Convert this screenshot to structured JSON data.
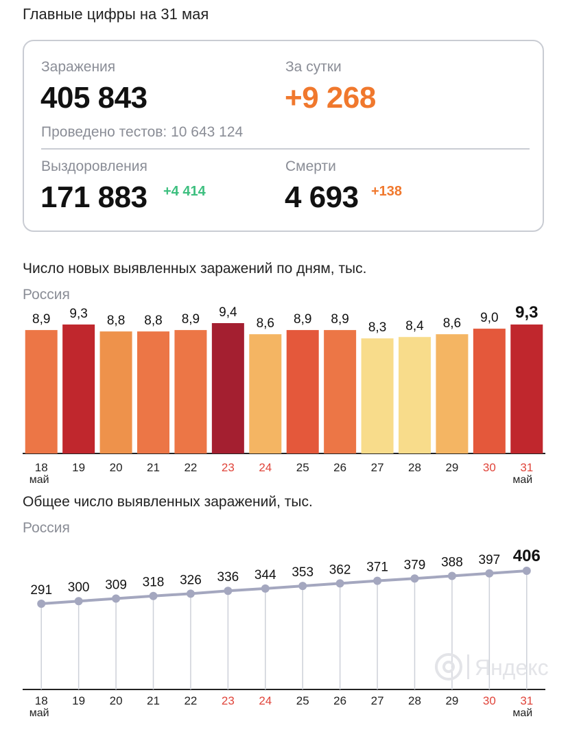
{
  "page_title": "Главные цифры на 31 мая",
  "summary": {
    "infections_label": "Заражения",
    "infections_value": "405 843",
    "daily_label": "За сутки",
    "daily_value": "+9 268",
    "tests_text": "Проведено тестов: 10 643 124",
    "recovered_label": "Выздоровления",
    "recovered_value": "171 883",
    "recovered_delta": "+4 414",
    "deaths_label": "Смерти",
    "deaths_value": "4 693",
    "deaths_delta": "+138"
  },
  "colors": {
    "orange": "#f0782d",
    "green": "#3dbf7f",
    "holiday": "#e0443a",
    "line": "#a4a7bf",
    "bar_scale": [
      "#f8dc8b",
      "#f4b563",
      "#ee924b",
      "#ec7646",
      "#e4583b",
      "#c0272d",
      "#a41f30"
    ]
  },
  "watermark": "Яндекс",
  "chart_data": [
    {
      "type": "bar",
      "title": "Число новых выявленных заражений по дням, тыс.",
      "subtitle": "Россия",
      "categories": [
        "18",
        "19",
        "20",
        "21",
        "22",
        "23",
        "24",
        "25",
        "26",
        "27",
        "28",
        "29",
        "30",
        "31"
      ],
      "month_label": "май",
      "holidays": [
        "23",
        "24",
        "30",
        "31"
      ],
      "values": [
        8.9,
        9.3,
        8.8,
        8.8,
        8.9,
        9.4,
        8.6,
        8.9,
        8.9,
        8.3,
        8.4,
        8.6,
        9.0,
        9.3
      ],
      "labels": [
        "8,9",
        "9,3",
        "8,8",
        "8,8",
        "8,9",
        "9,4",
        "8,6",
        "8,9",
        "8,9",
        "8,3",
        "8,4",
        "8,6",
        "9,0",
        "9,3"
      ],
      "bar_colors": [
        "#ec7646",
        "#c0272d",
        "#ee924b",
        "#ec7646",
        "#ec7646",
        "#a41f30",
        "#f4b563",
        "#e4583b",
        "#ec7646",
        "#f8dc8b",
        "#f8dc8b",
        "#f4b563",
        "#e4583b",
        "#c0272d"
      ],
      "highlight_last": true
    },
    {
      "type": "line",
      "title": "Общее число выявленных заражений, тыс.",
      "subtitle": "Россия",
      "categories": [
        "18",
        "19",
        "20",
        "21",
        "22",
        "23",
        "24",
        "25",
        "26",
        "27",
        "28",
        "29",
        "30",
        "31"
      ],
      "month_label": "май",
      "holidays": [
        "23",
        "24",
        "30",
        "31"
      ],
      "values": [
        291,
        300,
        309,
        318,
        326,
        336,
        344,
        353,
        362,
        371,
        379,
        388,
        397,
        406
      ],
      "labels": [
        "291",
        "300",
        "309",
        "318",
        "326",
        "336",
        "344",
        "353",
        "362",
        "371",
        "379",
        "388",
        "397",
        "406"
      ],
      "highlight_last": true
    }
  ]
}
